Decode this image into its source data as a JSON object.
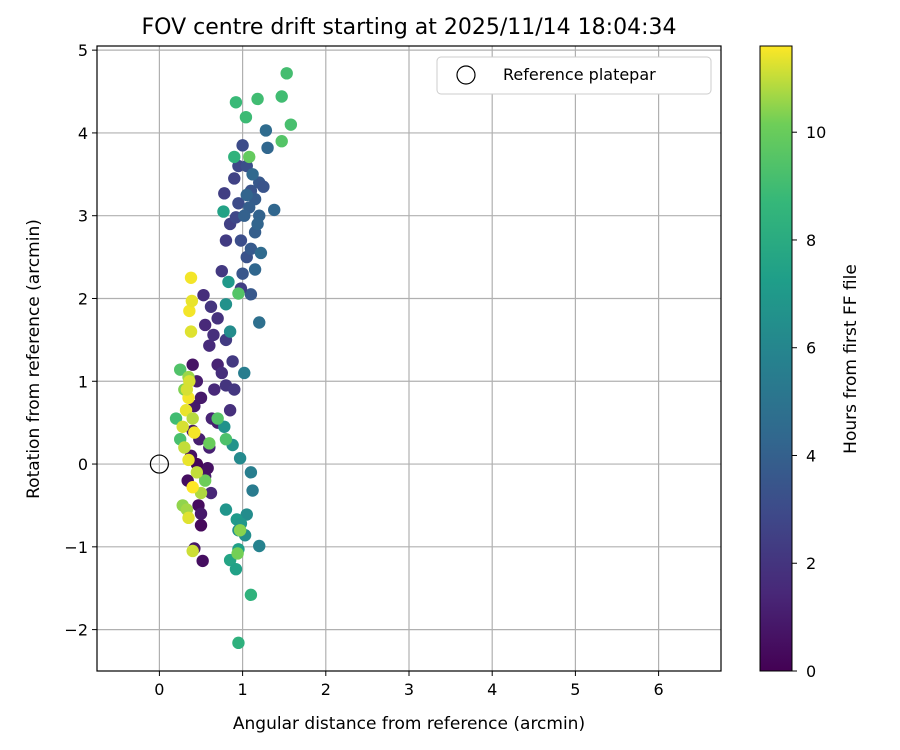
{
  "chart_data": {
    "type": "scatter",
    "title": "FOV centre drift starting at 2025/11/14 18:04:34",
    "xlabel": "Angular distance from reference (arcmin)",
    "ylabel": "Rotation from reference (arcmin)",
    "xlim": [
      -0.75,
      6.75
    ],
    "ylim": [
      -2.5,
      5.05
    ],
    "xticks": [
      0,
      1,
      2,
      3,
      4,
      5,
      6
    ],
    "xtick_labels": [
      "0",
      "1",
      "2",
      "3",
      "4",
      "5",
      "6"
    ],
    "yticks": [
      -2,
      -1,
      0,
      1,
      2,
      3,
      4,
      5
    ],
    "ytick_labels": [
      "−2",
      "−1",
      "0",
      "1",
      "2",
      "3",
      "4",
      "5"
    ],
    "grid": true,
    "legend": {
      "position": "top-right",
      "label": "Reference platepar"
    },
    "reference_point": {
      "x": 0,
      "y": 0
    },
    "colorbar": {
      "label": "Hours from first FF file",
      "colormap": "viridis",
      "range": [
        0,
        11.6
      ],
      "ticks": [
        0,
        2,
        4,
        6,
        8,
        10
      ],
      "tick_labels": [
        "0",
        "2",
        "4",
        "6",
        "8",
        "10"
      ]
    },
    "points": [
      [
        0.34,
        -0.2,
        0.5
      ],
      [
        0.38,
        0.1,
        0.6
      ],
      [
        0.4,
        0.4,
        0.8
      ],
      [
        0.42,
        0.7,
        0.9
      ],
      [
        0.45,
        1.0,
        1.0
      ],
      [
        0.4,
        1.2,
        0.7
      ],
      [
        0.47,
        -0.5,
        0.4
      ],
      [
        0.5,
        -0.74,
        0.3
      ],
      [
        0.52,
        -1.17,
        0.5
      ],
      [
        0.42,
        -1.02,
        0.8
      ],
      [
        0.55,
        -0.15,
        1.0
      ],
      [
        0.6,
        0.2,
        1.2
      ],
      [
        0.63,
        0.55,
        1.3
      ],
      [
        0.66,
        0.9,
        1.5
      ],
      [
        0.7,
        1.2,
        1.3
      ],
      [
        0.6,
        1.43,
        1.6
      ],
      [
        0.65,
        1.56,
        1.8
      ],
      [
        0.7,
        1.76,
        1.9
      ],
      [
        0.55,
        1.68,
        1.5
      ],
      [
        0.53,
        2.04,
        1.7
      ],
      [
        0.62,
        1.9,
        2.0
      ],
      [
        0.75,
        1.1,
        1.7
      ],
      [
        0.8,
        0.95,
        2.0
      ],
      [
        0.85,
        0.65,
        1.8
      ],
      [
        0.5,
        0.8,
        0.9
      ],
      [
        0.48,
        0.3,
        1.1
      ],
      [
        0.58,
        -0.05,
        0.6
      ],
      [
        0.45,
        0.0,
        0.2
      ],
      [
        0.62,
        -0.35,
        1.4
      ],
      [
        0.5,
        -0.6,
        0.9
      ],
      [
        0.7,
        0.5,
        1.1
      ],
      [
        0.9,
        0.9,
        2.1
      ],
      [
        0.88,
        1.24,
        2.2
      ],
      [
        0.8,
        1.5,
        2.3
      ],
      [
        0.75,
        2.33,
        2.2
      ],
      [
        0.8,
        2.7,
        2.3
      ],
      [
        0.85,
        2.9,
        2.5
      ],
      [
        0.78,
        3.27,
        2.4
      ],
      [
        0.9,
        3.45,
        2.6
      ],
      [
        0.95,
        3.6,
        2.8
      ],
      [
        1.0,
        3.85,
        3.0
      ],
      [
        1.05,
        3.6,
        3.2
      ],
      [
        1.1,
        3.3,
        3.4
      ],
      [
        0.95,
        3.15,
        3.0
      ],
      [
        0.92,
        2.98,
        2.8
      ],
      [
        0.98,
        2.7,
        3.1
      ],
      [
        1.05,
        2.5,
        3.3
      ],
      [
        1.0,
        2.3,
        3.5
      ],
      [
        1.1,
        2.6,
        3.7
      ],
      [
        1.15,
        2.8,
        3.9
      ],
      [
        1.2,
        3.0,
        4.1
      ],
      [
        1.15,
        3.2,
        3.8
      ],
      [
        1.2,
        3.4,
        3.6
      ],
      [
        1.25,
        3.35,
        3.4
      ],
      [
        1.08,
        3.1,
        3.9
      ],
      [
        1.02,
        3.0,
        4.0
      ],
      [
        1.05,
        3.25,
        4.2
      ],
      [
        1.12,
        3.5,
        4.4
      ],
      [
        1.18,
        2.9,
        4.2
      ],
      [
        1.22,
        2.55,
        4.5
      ],
      [
        1.15,
        2.35,
        4.3
      ],
      [
        1.1,
        2.05,
        3.6
      ],
      [
        0.98,
        2.12,
        2.4
      ],
      [
        1.3,
        3.82,
        4.3
      ],
      [
        1.28,
        4.03,
        4.6
      ],
      [
        1.38,
        3.07,
        4.3
      ],
      [
        1.2,
        1.71,
        4.8
      ],
      [
        1.02,
        1.1,
        5.5
      ],
      [
        1.1,
        -0.1,
        5.6
      ],
      [
        1.12,
        -0.32,
        5.4
      ],
      [
        1.2,
        -0.99,
        5.8
      ],
      [
        1.05,
        -0.61,
        6.3
      ],
      [
        1.03,
        -0.86,
        6.4
      ],
      [
        0.95,
        -0.8,
        6.5
      ],
      [
        0.97,
        0.07,
        6.2
      ],
      [
        0.88,
        0.23,
        6.7
      ],
      [
        0.78,
        0.45,
        6.6
      ],
      [
        0.8,
        -0.55,
        6.8
      ],
      [
        0.93,
        -0.67,
        7.1
      ],
      [
        0.98,
        -0.72,
        6.9
      ],
      [
        0.95,
        -1.03,
        7.3
      ],
      [
        0.85,
        -1.16,
        7.6
      ],
      [
        0.92,
        -1.27,
        7.4
      ],
      [
        1.1,
        -1.58,
        8.4
      ],
      [
        0.95,
        -2.16,
        8.3
      ],
      [
        0.85,
        1.6,
        6.3
      ],
      [
        0.8,
        1.93,
        6.6
      ],
      [
        0.83,
        2.2,
        7.0
      ],
      [
        0.77,
        3.05,
        7.5
      ],
      [
        0.9,
        3.71,
        8.4
      ],
      [
        1.08,
        3.71,
        9.9
      ],
      [
        0.92,
        4.37,
        8.8
      ],
      [
        1.04,
        4.19,
        8.9
      ],
      [
        1.18,
        4.41,
        9.0
      ],
      [
        1.47,
        4.44,
        9.0
      ],
      [
        1.53,
        4.72,
        9.1
      ],
      [
        1.58,
        4.1,
        9.2
      ],
      [
        1.47,
        3.9,
        9.5
      ],
      [
        0.95,
        2.06,
        9.5
      ],
      [
        0.97,
        -0.8,
        10.4
      ],
      [
        0.94,
        -1.08,
        10.2
      ],
      [
        0.8,
        0.3,
        9.3
      ],
      [
        0.7,
        0.55,
        9.5
      ],
      [
        0.6,
        0.25,
        10.0
      ],
      [
        0.55,
        -0.2,
        10.1
      ],
      [
        0.5,
        -0.35,
        10.8
      ],
      [
        0.45,
        -0.1,
        11.0
      ],
      [
        0.25,
        1.14,
        9.4
      ],
      [
        0.2,
        0.55,
        9.0
      ],
      [
        0.25,
        0.3,
        9.2
      ],
      [
        0.3,
        0.9,
        10.3
      ],
      [
        0.35,
        1.05,
        10.6
      ],
      [
        0.28,
        -0.5,
        10.5
      ],
      [
        0.33,
        -0.55,
        10.7
      ],
      [
        0.3,
        0.2,
        11.0
      ],
      [
        0.28,
        0.45,
        11.2
      ],
      [
        0.32,
        0.65,
        11.4
      ],
      [
        0.35,
        0.8,
        11.5
      ],
      [
        0.36,
        1.0,
        11.2
      ],
      [
        0.38,
        1.6,
        11.3
      ],
      [
        0.36,
        1.85,
        11.5
      ],
      [
        0.39,
        1.97,
        11.4
      ],
      [
        0.38,
        2.25,
        11.5
      ],
      [
        0.35,
        -0.65,
        11.3
      ],
      [
        0.4,
        -1.05,
        11.1
      ],
      [
        0.35,
        0.05,
        11.4
      ],
      [
        0.4,
        -0.28,
        11.6
      ],
      [
        0.42,
        0.38,
        11.5
      ],
      [
        0.33,
        0.9,
        11.2
      ],
      [
        0.4,
        0.55,
        10.9
      ]
    ]
  }
}
